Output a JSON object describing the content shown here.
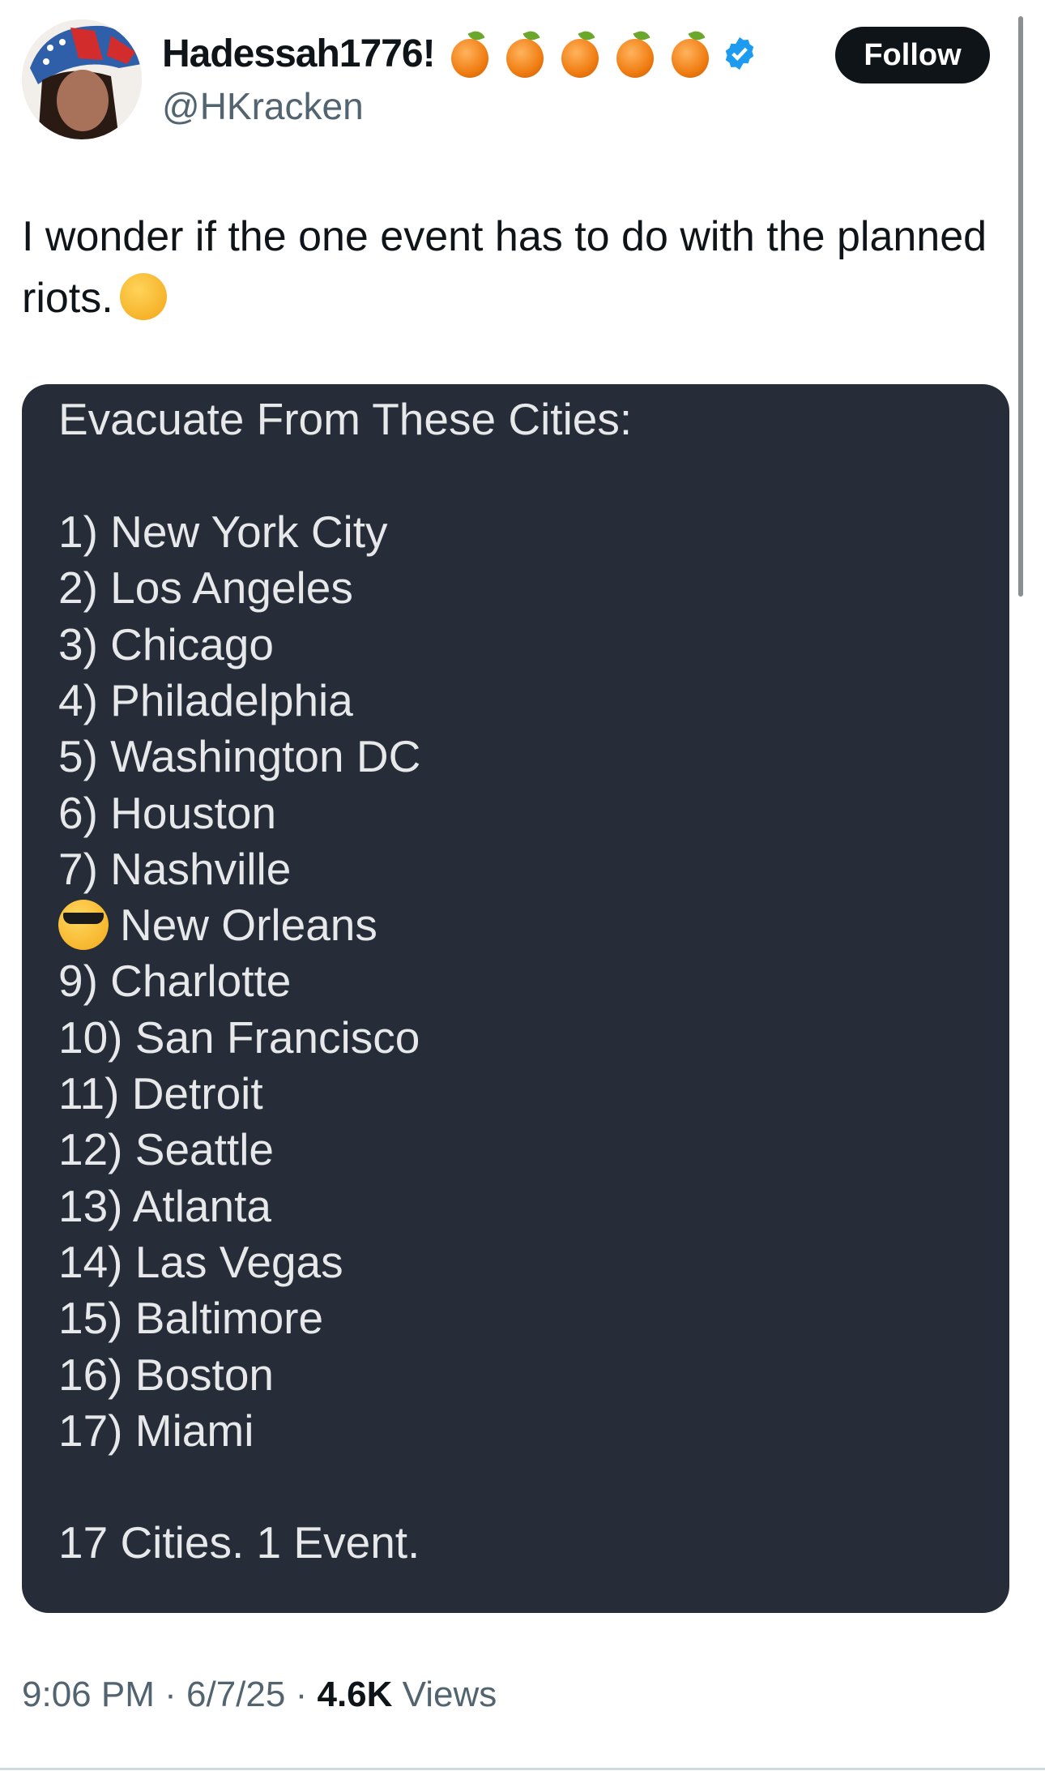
{
  "author": {
    "display_name": "Hadessah1776!",
    "emoji_count": 5,
    "emoji": "tangerine",
    "verified": true,
    "verified_color": "#1d9bf0",
    "handle": "@HKracken"
  },
  "follow_label": "Follow",
  "tweet_text": "I wonder if the one event has to do with the planned riots.",
  "tweet_emoji": "thinking-face",
  "card": {
    "heading": "Evacuate From These Cities:",
    "items": [
      "1) New York City",
      "2) Los Angeles",
      "3) Chicago",
      "4) Philadelphia",
      "5) Washington DC",
      "6) Houston",
      "7) Nashville",
      "New Orleans",
      "9) Charlotte",
      "10) San Francisco",
      "11) Detroit",
      "12) Seattle",
      "13) Atlanta",
      "14) Las Vegas",
      "15) Baltimore",
      "16) Boston",
      "17) Miami"
    ],
    "item8_emoji": "sunglasses-face",
    "footer": "17 Cities. 1 Event.",
    "bg_color": "#262d38"
  },
  "meta": {
    "time": "9:06 PM",
    "sep": "·",
    "date": "6/7/25",
    "views_count": "4.6K",
    "views_label": "Views"
  }
}
